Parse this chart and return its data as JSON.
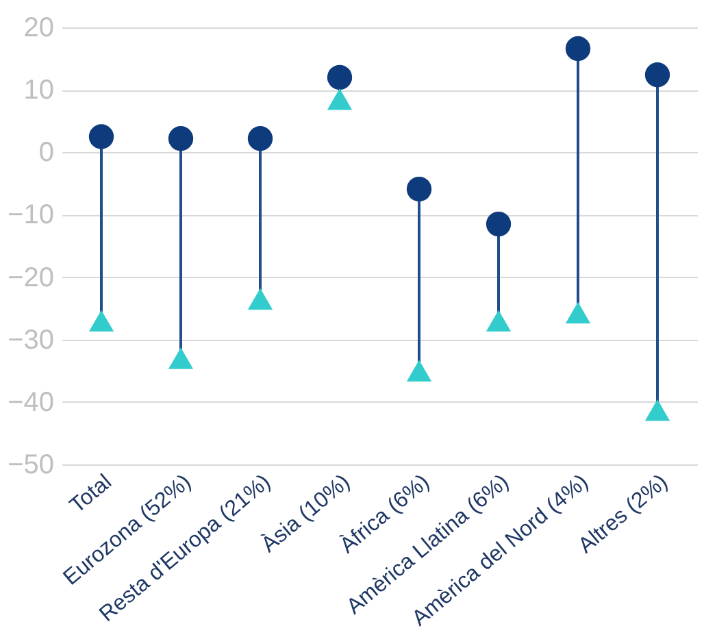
{
  "chart_data": {
    "type": "scatter",
    "categories": [
      "Total",
      "Eurozona (52%)",
      "Resta d'Europa (21%)",
      "Àsia (10%)",
      "Àfrica (6%)",
      "Amèrica Llatina (6%)",
      "Amèrica del Nord (4%)",
      "Altres (2%)"
    ],
    "series": [
      {
        "color": "#0e3b7c",
        "marker": "circle",
        "values": [
          2.5,
          2.2,
          2.2,
          12,
          -5.9,
          -11.5,
          16.6,
          12.4
        ]
      },
      {
        "color": "#33cccc",
        "marker": "triangle",
        "values": [
          -27,
          -33,
          -23.5,
          8.5,
          -35,
          -27,
          -25.7,
          -41.3
        ]
      }
    ],
    "ylim": [
      -50,
      20
    ],
    "yticks": [
      -50,
      -40,
      -30,
      -20,
      -10,
      0,
      10,
      20
    ],
    "grid": "y"
  }
}
